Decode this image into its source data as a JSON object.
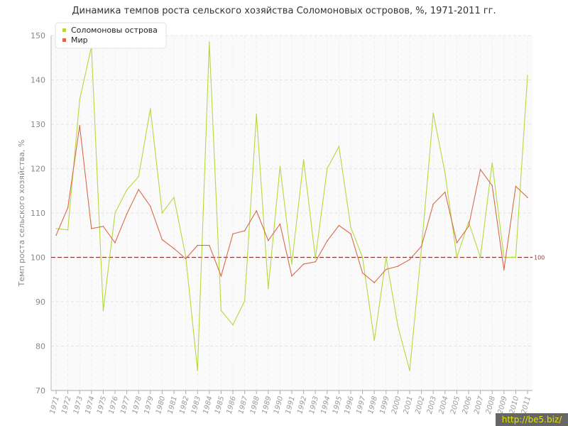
{
  "chart_data": {
    "type": "line",
    "title": "Динамика темпов роста сельского хозяйства Соломоновых островов, %, 1971-2011 гг.",
    "ylabel": "Темп роста сельского хозяйства, %",
    "xlabel": "",
    "ylim": [
      70,
      150
    ],
    "yticks": [
      70,
      80,
      90,
      100,
      110,
      120,
      130,
      140,
      150
    ],
    "grid": true,
    "legend_position": "top-left",
    "reference_line": {
      "value": 100,
      "label": "100",
      "color": "#8b3a3a"
    },
    "x": [
      "1971",
      "1972",
      "1973",
      "1974",
      "1975",
      "1976",
      "1977",
      "1978",
      "1979",
      "1980",
      "1981",
      "1982",
      "1983",
      "1984",
      "1985",
      "1986",
      "1987",
      "1988",
      "1989",
      "1990",
      "1991",
      "1992",
      "1993",
      "1994",
      "1995",
      "1996",
      "1997",
      "1998",
      "1999",
      "2000",
      "2001",
      "2002",
      "2003",
      "2004",
      "2005",
      "2006",
      "2007",
      "2008",
      "2009",
      "2010",
      "2011"
    ],
    "series": [
      {
        "name": "Соломоновы острова",
        "color": "#b5d93d",
        "values": [
          106.5,
          106.2,
          135.5,
          147.5,
          88.0,
          110.0,
          115.2,
          118.2,
          133.5,
          110.0,
          113.5,
          100.2,
          74.5,
          148.5,
          88.0,
          84.8,
          90.2,
          132.3,
          93.0,
          120.5,
          98.5,
          122.0,
          99.8,
          120.0,
          125.0,
          106.8,
          100.0,
          81.3,
          100.0,
          84.5,
          74.5,
          102.0,
          132.5,
          119.0,
          100.0,
          108.0,
          100.0,
          121.3,
          100.0,
          100.0,
          141.0
        ]
      },
      {
        "name": "Мир",
        "color": "#d9694a",
        "values": [
          105.0,
          111.2,
          129.7,
          106.5,
          107.0,
          103.3,
          109.8,
          115.3,
          111.5,
          104.0,
          102.0,
          99.7,
          102.7,
          102.7,
          95.8,
          105.3,
          106.0,
          110.5,
          103.8,
          107.5,
          95.8,
          98.5,
          99.0,
          103.7,
          107.2,
          105.3,
          96.5,
          94.3,
          97.3,
          98.0,
          99.5,
          102.5,
          112.0,
          114.7,
          103.3,
          107.0,
          119.8,
          116.2,
          97.2,
          116.0,
          113.5
        ]
      }
    ]
  },
  "watermark": "http://be5.biz/"
}
